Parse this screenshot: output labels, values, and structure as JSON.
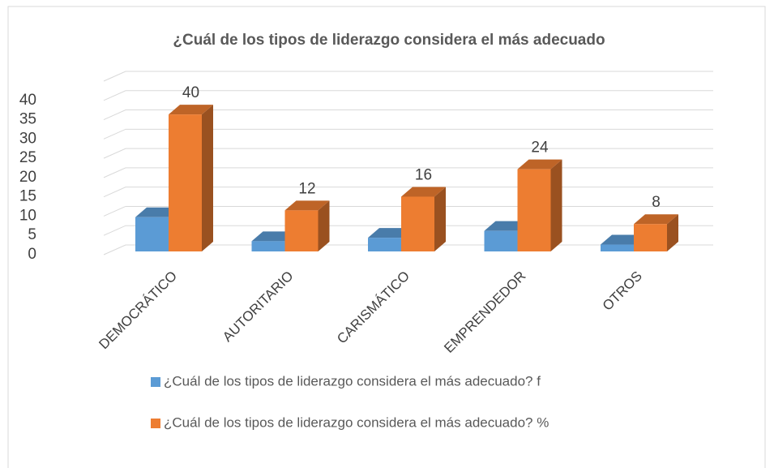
{
  "chart_data": {
    "type": "bar3d",
    "title": "¿Cuál de los tipos de liderazgo considera el más adecuado",
    "categories": [
      "DEMOCRÁTICO",
      "AUTORITARIO",
      "CARISMÁTICO",
      "EMPRENDEDOR",
      "OTROS"
    ],
    "series": [
      {
        "name": "¿Cuál de los tipos de liderazgo considera el más adecuado? f",
        "color": "#5b9bd5",
        "values": [
          10,
          3,
          4,
          6,
          2
        ]
      },
      {
        "name": "¿Cuál de los tipos de liderazgo considera el más adecuado? %",
        "color": "#ed7d31",
        "values": [
          40,
          12,
          16,
          24,
          8
        ]
      }
    ],
    "data_labels_series": 1,
    "ylim": [
      0,
      45
    ],
    "yticks": [
      0,
      5,
      10,
      15,
      20,
      25,
      30,
      35,
      40
    ],
    "grid": true,
    "legend": "bottom"
  }
}
